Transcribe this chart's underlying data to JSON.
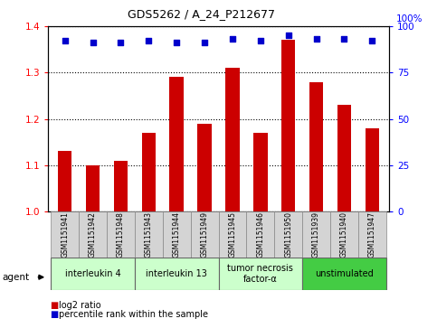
{
  "title": "GDS5262 / A_24_P212677",
  "samples": [
    "GSM1151941",
    "GSM1151942",
    "GSM1151948",
    "GSM1151943",
    "GSM1151944",
    "GSM1151949",
    "GSM1151945",
    "GSM1151946",
    "GSM1151950",
    "GSM1151939",
    "GSM1151940",
    "GSM1151947"
  ],
  "log2_ratios": [
    1.13,
    1.1,
    1.11,
    1.17,
    1.29,
    1.19,
    1.31,
    1.17,
    1.37,
    1.28,
    1.23,
    1.18
  ],
  "percentile_ranks": [
    92,
    91,
    91,
    92,
    91,
    91,
    93,
    92,
    95,
    93,
    93,
    92
  ],
  "ylim_left": [
    1.0,
    1.4
  ],
  "ylim_right": [
    0,
    100
  ],
  "yticks_left": [
    1.0,
    1.1,
    1.2,
    1.3,
    1.4
  ],
  "yticks_right": [
    0,
    25,
    50,
    75,
    100
  ],
  "bar_color": "#cc0000",
  "dot_color": "#0000cc",
  "groups": [
    {
      "label": "interleukin 4",
      "start": 0,
      "end": 3,
      "color": "#ccffcc"
    },
    {
      "label": "interleukin 13",
      "start": 3,
      "end": 6,
      "color": "#ccffcc"
    },
    {
      "label": "tumor necrosis\nfactor-α",
      "start": 6,
      "end": 9,
      "color": "#ccffcc"
    },
    {
      "label": "unstimulated",
      "start": 9,
      "end": 12,
      "color": "#44cc44"
    }
  ],
  "agent_label": "agent",
  "legend_log2": "log2 ratio",
  "legend_pct": "percentile rank within the sample",
  "background_color": "#ffffff",
  "bar_width": 0.5
}
